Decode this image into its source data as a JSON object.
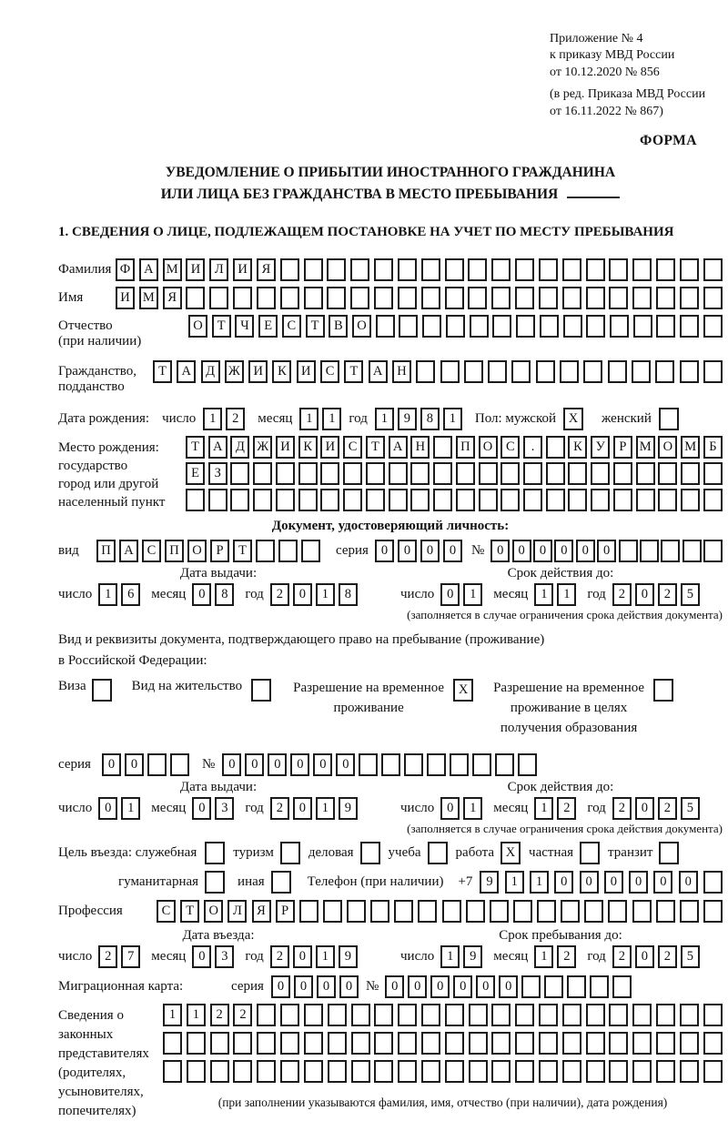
{
  "header": {
    "appendix_lines": [
      "Приложение № 4",
      "к приказу МВД России",
      "от 10.12.2020 № 856"
    ],
    "revision_lines": [
      "(в ред. Приказа МВД России",
      "от 16.11.2022 № 867)"
    ],
    "form_label": "ФОРМА"
  },
  "title": {
    "line1": "УВЕДОМЛЕНИЕ О ПРИБЫТИИ ИНОСТРАННОГО ГРАЖДАНИНА",
    "line2": "ИЛИ ЛИЦА БЕЗ ГРАЖДАНСТВА В МЕСТО ПРЕБЫВАНИЯ"
  },
  "section1": {
    "heading": "1. СВЕДЕНИЯ О ЛИЦЕ, ПОДЛЕЖАЩЕМ ПОСТАНОВКЕ НА УЧЕТ ПО МЕСТУ ПРЕБЫВАНИЯ",
    "surname": {
      "label": "Фамилия",
      "boxes": {
        "chars": "ФАМИЛИЯ",
        "total": 26
      }
    },
    "given_name": {
      "label": "Имя",
      "boxes": {
        "chars": "ИМЯ",
        "total": 26
      }
    },
    "patronymic": {
      "label_line1": "Отчество",
      "label_line2": "(при наличии)",
      "boxes": {
        "chars": "ОТЧЕСТВО",
        "total": 23
      }
    },
    "citizenship": {
      "label_line1": "Гражданство,",
      "label_line2": "подданство",
      "boxes": {
        "chars": "ТАДЖИКИСТАН",
        "total": 24
      }
    },
    "birth_date": {
      "label": "Дата рождения:",
      "day_label": "число",
      "day": "12",
      "month_label": "месяц",
      "month": "11",
      "year_label": "год",
      "year": "1981"
    },
    "gender": {
      "label": "Пол: мужской",
      "male_mark": "X",
      "female_label": "женский",
      "female_mark": ""
    },
    "birth_place": {
      "label_lines": [
        "Место рождения:",
        "государство",
        "город или другой",
        "населенный пункт"
      ],
      "row1": {
        "chars": "ТАДЖИКИСТАН ПОС. КУРМОМБ",
        "total": 24
      },
      "row2": {
        "chars": "ЕЗ",
        "total": 24
      },
      "row3": {
        "chars": "",
        "total": 24
      }
    },
    "identity_doc": {
      "heading": "Документ, удостоверяющий личность:",
      "type_label": "вид",
      "type_boxes": {
        "chars": "ПАСПОРТ",
        "total": 10
      },
      "series_label": "серия",
      "series_boxes": {
        "chars": "0000",
        "total": 4
      },
      "number_label": "№",
      "number_boxes": {
        "chars": "000000",
        "total": 11
      },
      "issue_heading": "Дата выдачи:",
      "issue": {
        "day_label": "число",
        "day": "16",
        "month_label": "месяц",
        "month": "08",
        "year_label": "год",
        "year": "2018"
      },
      "validity_heading": "Срок действия до:",
      "validity": {
        "day_label": "число",
        "day": "01",
        "month_label": "месяц",
        "month": "11",
        "year_label": "год",
        "year": "2025"
      },
      "validity_note": "(заполняется в случае ограничения срока действия документа)"
    },
    "residence_doc": {
      "heading_line1": "Вид и реквизиты документа, подтверждающего право на пребывание (проживание)",
      "heading_line2": "в Российской Федерации:",
      "visa": {
        "label": "Виза",
        "mark": ""
      },
      "residence_permit": {
        "label": "Вид на жительство",
        "mark": ""
      },
      "temp_residence": {
        "lines": [
          "Разрешение на временное",
          "проживание"
        ],
        "mark": "X"
      },
      "temp_residence_edu": {
        "lines": [
          "Разрешение на временное",
          "проживание в целях",
          "получения образования"
        ],
        "mark": ""
      },
      "series_label": "серия",
      "series_boxes": {
        "chars": "00",
        "total": 4
      },
      "number_label": "№",
      "number_boxes": {
        "chars": "000000",
        "total": 14
      },
      "issue_heading": "Дата выдачи:",
      "issue": {
        "day_label": "число",
        "day": "01",
        "month_label": "месяц",
        "month": "03",
        "year_label": "год",
        "year": "2019"
      },
      "validity_heading": "Срок действия до:",
      "validity": {
        "day_label": "число",
        "day": "01",
        "month_label": "месяц",
        "month": "12",
        "year_label": "год",
        "year": "2025"
      },
      "validity_note": "(заполняется в случае ограничения срока действия документа)"
    },
    "purpose": {
      "label": "Цель въезда: служебная",
      "options_row1": [
        {
          "label": "туризм",
          "mark": ""
        },
        {
          "label": "деловая",
          "mark": ""
        },
        {
          "label": "учеба",
          "mark": ""
        },
        {
          "label": "работа",
          "mark": "X"
        },
        {
          "label": "частная",
          "mark": ""
        },
        {
          "label": "транзит",
          "mark": ""
        }
      ],
      "first_mark": "",
      "options_row2": [
        {
          "label": "гуманитарная",
          "mark": ""
        },
        {
          "label": "иная",
          "mark": ""
        }
      ]
    },
    "phone": {
      "label": "Телефон (при наличии)",
      "prefix": "+7",
      "boxes": {
        "chars": "911000000",
        "total": 10
      }
    },
    "profession": {
      "label": "Профессия",
      "boxes": {
        "chars": "СТОЛЯР",
        "total": 24
      }
    },
    "entry_date": {
      "heading": "Дата въезда:",
      "day_label": "число",
      "day": "27",
      "month_label": "месяц",
      "month": "03",
      "year_label": "год",
      "year": "2019"
    },
    "stay_until": {
      "heading": "Срок пребывания до:",
      "day_label": "число",
      "day": "19",
      "month_label": "месяц",
      "month": "12",
      "year_label": "год",
      "year": "2025"
    },
    "migration_card": {
      "label": "Миграционная карта:",
      "series_label": "серия",
      "series_boxes": {
        "chars": "0000",
        "total": 4
      },
      "number_label": "№",
      "number_boxes": {
        "chars": "000000",
        "total": 11
      }
    },
    "representatives": {
      "label_lines": [
        "Сведения о",
        "законных",
        "представителях",
        "(родителях,",
        "усыновителях,",
        "попечителях)"
      ],
      "row1": {
        "chars": "1122",
        "total": 24
      },
      "row2": {
        "chars": "",
        "total": 24
      },
      "row3": {
        "chars": "",
        "total": 24
      },
      "note": "(при заполнении указываются фамилия, имя, отчество (при наличии), дата рождения)"
    }
  }
}
